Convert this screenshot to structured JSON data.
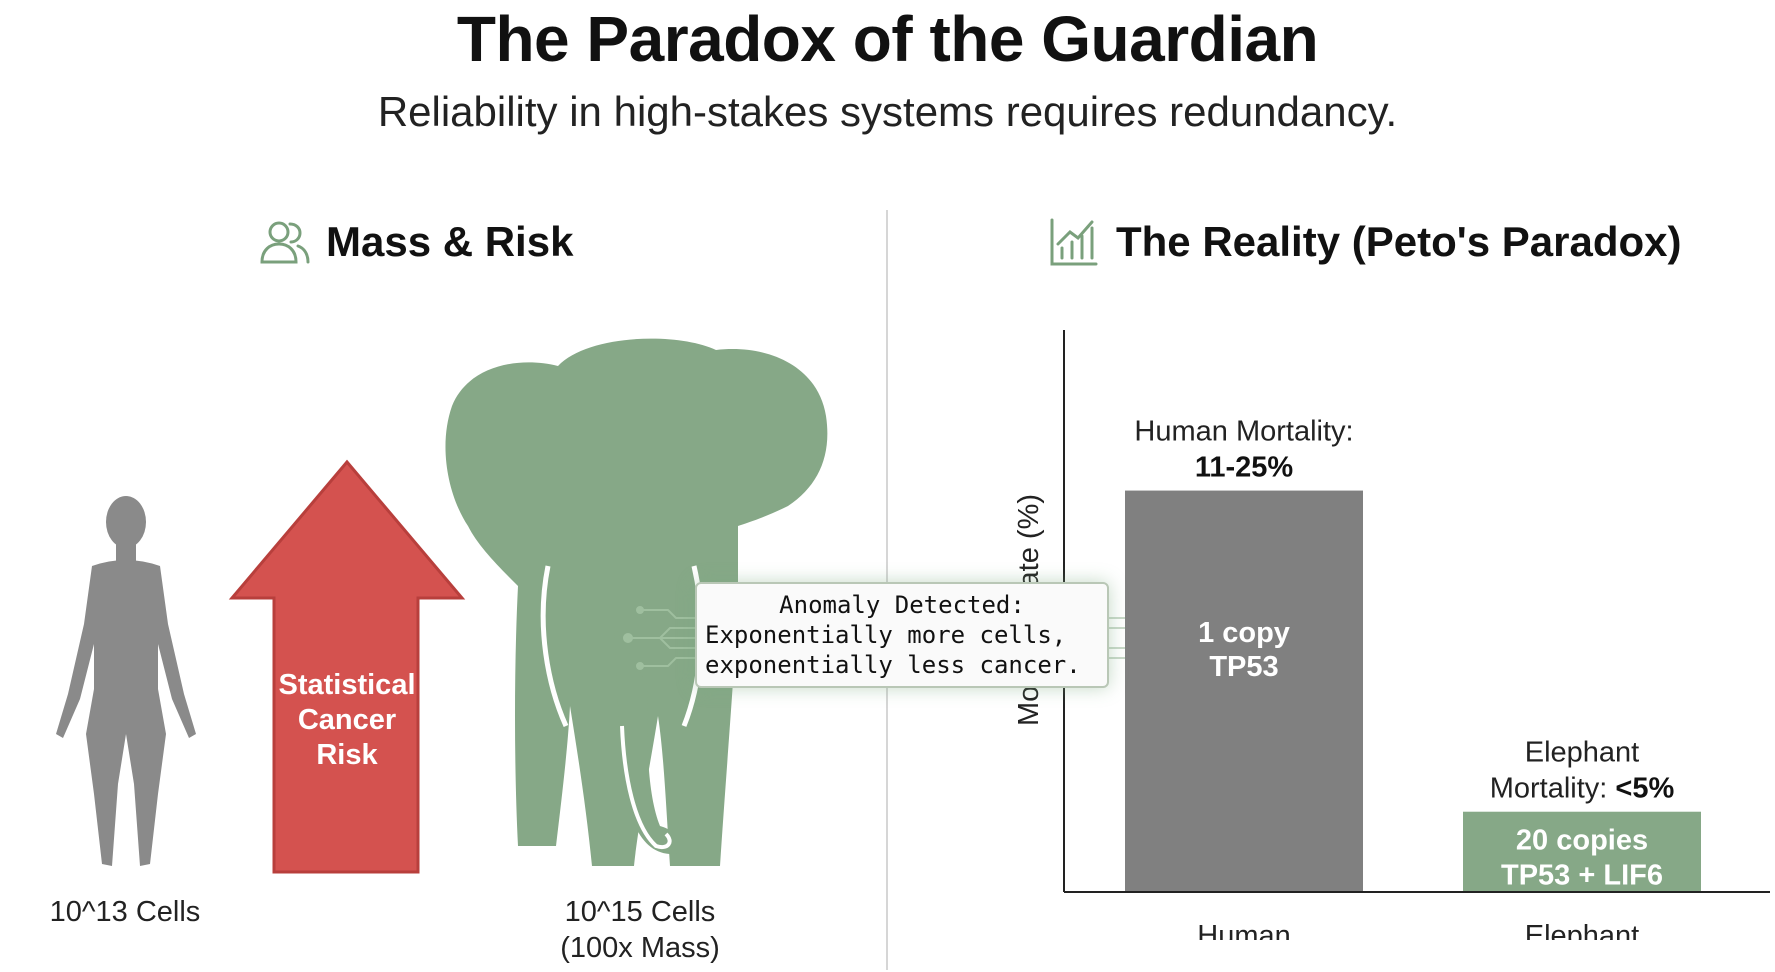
{
  "header": {
    "title": "The Paradox of the Guardian",
    "subtitle": "Reliability in high-stakes systems requires redundancy."
  },
  "left_panel": {
    "heading": "Mass & Risk",
    "icon": "people-icon",
    "human_label": "10^13 Cells",
    "elephant_label_line1": "10^15 Cells",
    "elephant_label_line2": "(100x Mass)",
    "arrow_line1": "Statistical",
    "arrow_line2": "Cancer",
    "arrow_line3": "Risk"
  },
  "callout": {
    "line1": "Anomaly Detected:",
    "line2": "Exponentially more cells,",
    "line3": "exponentially less cancer."
  },
  "right_panel": {
    "heading": "The Reality (Peto's Paradox)",
    "icon": "bar-chart-icon"
  },
  "chart_data": {
    "type": "bar",
    "ylabel": "Mortality Rate (%)",
    "categories": [
      "Human",
      "Elephant"
    ],
    "values": [
      25,
      5
    ],
    "ylim": [
      0,
      35
    ],
    "grid": false,
    "value_labels": [
      {
        "prefix": "Human Mortality:",
        "value": "11-25%"
      },
      {
        "prefix_line1": "Elephant",
        "prefix_line2": "Mortality:",
        "value": "<5%"
      }
    ],
    "bar_text": [
      {
        "line1": "1 copy",
        "line2": "TP53"
      },
      {
        "line1": "20 copies",
        "line2": "TP53 + LIF6"
      }
    ]
  },
  "colors": {
    "green": "#86a887",
    "green_dark": "#7aa07c",
    "red": "#d4524f",
    "gray_bar": "#808080",
    "human_gray": "#8a8a8a"
  }
}
